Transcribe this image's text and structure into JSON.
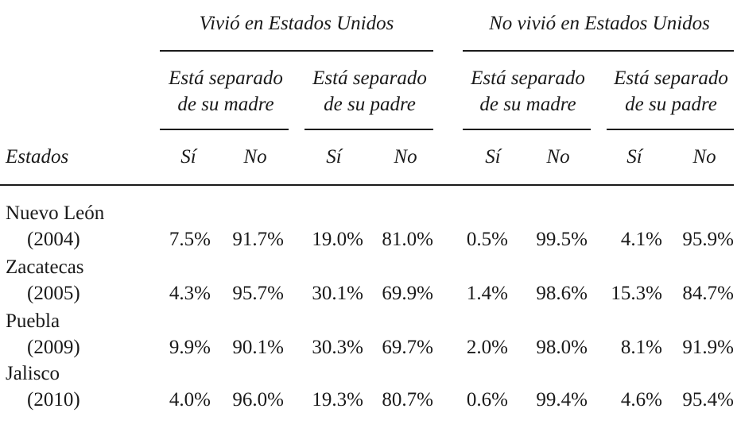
{
  "table": {
    "groups": [
      {
        "label": "Vivió en Estados Unidos",
        "subgroups": [
          {
            "line1": "Está separado",
            "line2": "de su madre"
          },
          {
            "line1": "Está separado",
            "line2": "de su padre"
          }
        ]
      },
      {
        "label": "No vivió en Estados Unidos",
        "subgroups": [
          {
            "line1": "Está separado",
            "line2": "de su madre"
          },
          {
            "line1": "Está separado",
            "line2": "de su padre"
          }
        ]
      }
    ],
    "row_header": "Estados",
    "yes_label": "Sí",
    "no_label": "No",
    "rows": [
      {
        "state": "Nuevo León",
        "year": "(2004)",
        "values": [
          "7.5%",
          "91.7%",
          "19.0%",
          "81.0%",
          "0.5%",
          "99.5%",
          "4.1%",
          "95.9%"
        ]
      },
      {
        "state": "Zacatecas",
        "year": "(2005)",
        "values": [
          "4.3%",
          "95.7%",
          "30.1%",
          "69.9%",
          "1.4%",
          "98.6%",
          "15.3%",
          "84.7%"
        ]
      },
      {
        "state": "Puebla",
        "year": "(2009)",
        "values": [
          "9.9%",
          "90.1%",
          "30.3%",
          "69.7%",
          "2.0%",
          "98.0%",
          "8.1%",
          "91.9%"
        ]
      },
      {
        "state": "Jalisco",
        "year": "(2010)",
        "values": [
          "4.0%",
          "96.0%",
          "19.3%",
          "80.7%",
          "0.6%",
          "99.4%",
          "4.6%",
          "95.4%"
        ]
      }
    ]
  }
}
